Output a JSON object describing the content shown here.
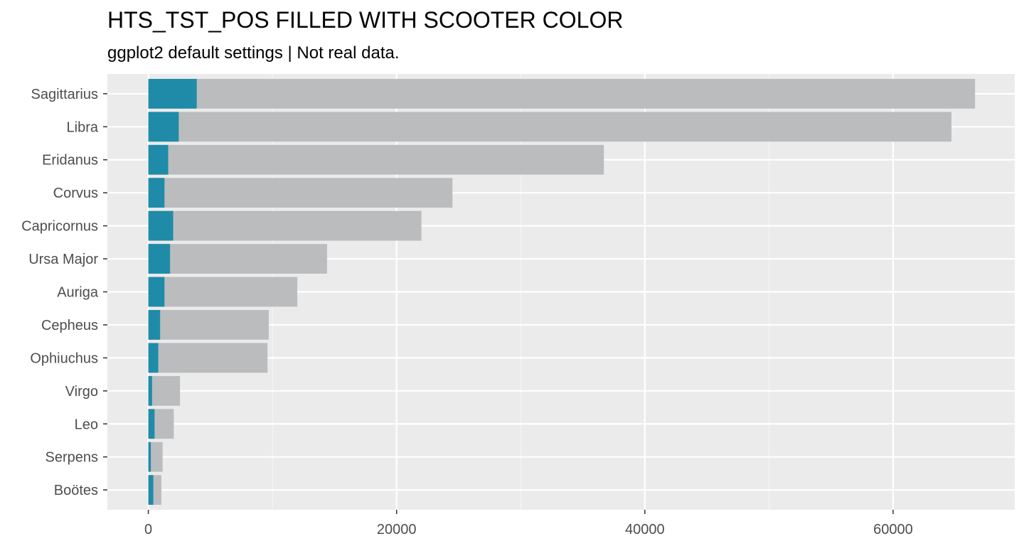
{
  "chart_data": {
    "type": "bar",
    "orientation": "horizontal",
    "stacked": "overlay",
    "title": "HTS_TST_POS FILLED WITH SCOOTER COLOR",
    "subtitle": "ggplot2 default settings | Not real data.",
    "xlabel": "",
    "ylabel": "",
    "xlim": [
      -3300,
      69800
    ],
    "x_ticks": [
      0,
      20000,
      40000,
      60000
    ],
    "x_tick_labels": [
      "0",
      "20000",
      "40000",
      "60000"
    ],
    "grid": true,
    "legend": "none",
    "categories": [
      "Sagittarius",
      "Libra",
      "Eridanus",
      "Corvus",
      "Capricornus",
      "Ursa Major",
      "Auriga",
      "Cepheus",
      "Ophiuchus",
      "Virgo",
      "Leo",
      "Serpens",
      "Boötes"
    ],
    "series": [
      {
        "values": [
          66600,
          64700,
          36700,
          24500,
          22000,
          14400,
          12000,
          9700,
          9600,
          2550,
          2050,
          1150,
          1050
        ],
        "color": "#bbbcbe"
      },
      {
        "values": [
          3900,
          2450,
          1600,
          1300,
          2000,
          1750,
          1300,
          950,
          800,
          300,
          500,
          200,
          400
        ],
        "color": "#1f8ba8"
      }
    ]
  },
  "colors": {
    "panel_background": "#ebebeb",
    "grid_major": "#ffffff",
    "grid_minor": "#f5f5f5",
    "tick_text": "#4d4d4d",
    "tick_mark": "#333333"
  }
}
